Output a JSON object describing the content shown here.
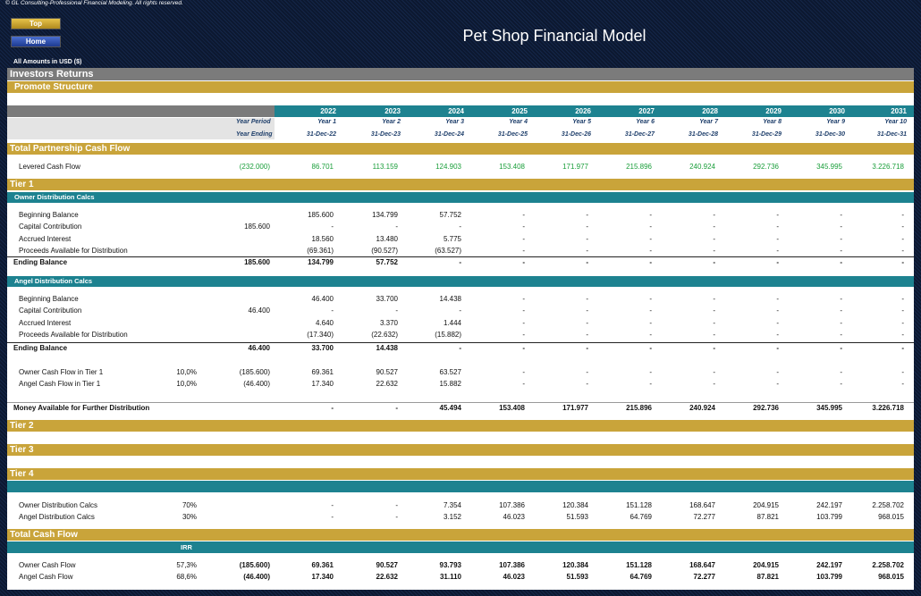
{
  "copyright": "© GL Consulting-Professional Financial Modeling. All rights reserved.",
  "nav": {
    "top": "Top",
    "home": "Home"
  },
  "title": "Pet Shop Financial Model",
  "amounts": "All Amounts in  USD ($)",
  "sections": {
    "investors": "Investors Returns",
    "promote": "Promote Structure",
    "tpcf": "Total Partnership Cash Flow",
    "tier1": "Tier 1",
    "owner_calcs": "Owner Distribution Calcs",
    "angel_calcs": "Angel Distribution Calcs",
    "tier2": "Tier 2",
    "tier3": "Tier 3",
    "tier4": "Tier 4",
    "tcf": "Total Cash Flow",
    "irr": "IRR"
  },
  "header": {
    "years": [
      "2022",
      "2023",
      "2024",
      "2025",
      "2026",
      "2027",
      "2028",
      "2029",
      "2030",
      "2031"
    ],
    "period_label": "Year Period",
    "periods": [
      "Year 1",
      "Year 2",
      "Year 3",
      "Year 4",
      "Year 5",
      "Year 6",
      "Year 7",
      "Year 8",
      "Year 9",
      "Year 10"
    ],
    "ending_label": "Year Ending",
    "endings": [
      "31-Dec-22",
      "31-Dec-23",
      "31-Dec-24",
      "31-Dec-25",
      "31-Dec-26",
      "31-Dec-27",
      "31-Dec-28",
      "31-Dec-29",
      "31-Dec-30",
      "31-Dec-31"
    ]
  },
  "rows": {
    "levered": {
      "label": "Levered Cash Flow",
      "pre": "(232.000)",
      "vals": [
        "86.701",
        "113.159",
        "124.903",
        "153.408",
        "171.977",
        "215.896",
        "240.924",
        "292.736",
        "345.995",
        "3.226.718"
      ]
    },
    "o_begin": {
      "label": "Beginning Balance",
      "pre": "",
      "vals": [
        "185.600",
        "134.799",
        "57.752",
        "-",
        "-",
        "-",
        "-",
        "-",
        "-",
        "-"
      ]
    },
    "o_cap": {
      "label": "Capital Contribution",
      "pre": "185.600",
      "vals": [
        "-",
        "-",
        "-",
        "-",
        "-",
        "-",
        "-",
        "-",
        "-",
        "-"
      ]
    },
    "o_acc": {
      "label": "Accrued Interest",
      "pre": "",
      "vals": [
        "18.560",
        "13.480",
        "5.775",
        "-",
        "-",
        "-",
        "-",
        "-",
        "-",
        "-"
      ]
    },
    "o_proc": {
      "label": "Proceeds Available for Distribution",
      "pre": "",
      "vals": [
        "(69.361)",
        "(90.527)",
        "(63.527)",
        "-",
        "-",
        "-",
        "-",
        "-",
        "-",
        "-"
      ]
    },
    "o_end": {
      "label": "Ending Balance",
      "pre": "185.600",
      "vals": [
        "134.799",
        "57.752",
        "-",
        "-",
        "-",
        "-",
        "-",
        "-",
        "-",
        "-"
      ]
    },
    "a_begin": {
      "label": "Beginning Balance",
      "pre": "",
      "vals": [
        "46.400",
        "33.700",
        "14.438",
        "-",
        "-",
        "-",
        "-",
        "-",
        "-",
        "-"
      ]
    },
    "a_cap": {
      "label": "Capital Contribution",
      "pre": "46.400",
      "vals": [
        "-",
        "-",
        "-",
        "-",
        "-",
        "-",
        "-",
        "-",
        "-",
        "-"
      ]
    },
    "a_acc": {
      "label": "Accrued Interest",
      "pre": "",
      "vals": [
        "4.640",
        "3.370",
        "1.444",
        "-",
        "-",
        "-",
        "-",
        "-",
        "-",
        "-"
      ]
    },
    "a_proc": {
      "label": "Proceeds Available for Distribution",
      "pre": "",
      "vals": [
        "(17.340)",
        "(22.632)",
        "(15.882)",
        "-",
        "-",
        "-",
        "-",
        "-",
        "-",
        "-"
      ]
    },
    "a_end": {
      "label": "Ending Balance",
      "pre": "46.400",
      "vals": [
        "33.700",
        "14.438",
        "-",
        "-",
        "-",
        "-",
        "-",
        "-",
        "-",
        "-"
      ]
    },
    "ocf1": {
      "label": "Owner Cash Flow in Tier 1",
      "pct": "10,0%",
      "pre": "(185.600)",
      "vals": [
        "69.361",
        "90.527",
        "63.527",
        "-",
        "-",
        "-",
        "-",
        "-",
        "-",
        "-"
      ]
    },
    "acf1": {
      "label": "Angel Cash Flow in Tier 1",
      "pct": "10,0%",
      "pre": "(46.400)",
      "vals": [
        "17.340",
        "22.632",
        "15.882",
        "-",
        "-",
        "-",
        "-",
        "-",
        "-",
        "-"
      ]
    },
    "money": {
      "label": "Money Available for Further Distribution",
      "pre": "",
      "vals": [
        "-",
        "-",
        "45.494",
        "153.408",
        "171.977",
        "215.896",
        "240.924",
        "292.736",
        "345.995",
        "3.226.718"
      ]
    },
    "t4o": {
      "label": "Owner Distribution Calcs",
      "pct": "70%",
      "pre": "",
      "vals": [
        "-",
        "-",
        "7.354",
        "107.386",
        "120.384",
        "151.128",
        "168.647",
        "204.915",
        "242.197",
        "2.258.702"
      ]
    },
    "t4a": {
      "label": "Angel Distribution Calcs",
      "pct": "30%",
      "pre": "",
      "vals": [
        "-",
        "-",
        "3.152",
        "46.023",
        "51.593",
        "64.769",
        "72.277",
        "87.821",
        "103.799",
        "968.015"
      ]
    },
    "tco": {
      "label": "Owner Cash Flow",
      "pct": "57,3%",
      "pre": "(185.600)",
      "vals": [
        "69.361",
        "90.527",
        "93.793",
        "107.386",
        "120.384",
        "151.128",
        "168.647",
        "204.915",
        "242.197",
        "2.258.702"
      ]
    },
    "tca": {
      "label": "Angel Cash Flow",
      "pct": "68,6%",
      "pre": "(46.400)",
      "vals": [
        "17.340",
        "22.632",
        "31.110",
        "46.023",
        "51.593",
        "64.769",
        "72.277",
        "87.821",
        "103.799",
        "968.015"
      ]
    }
  },
  "colors": {
    "gold": "#c9a43a",
    "teal": "#1d8290",
    "gray": "#7b7b7b",
    "green": "#1a9e3a"
  }
}
